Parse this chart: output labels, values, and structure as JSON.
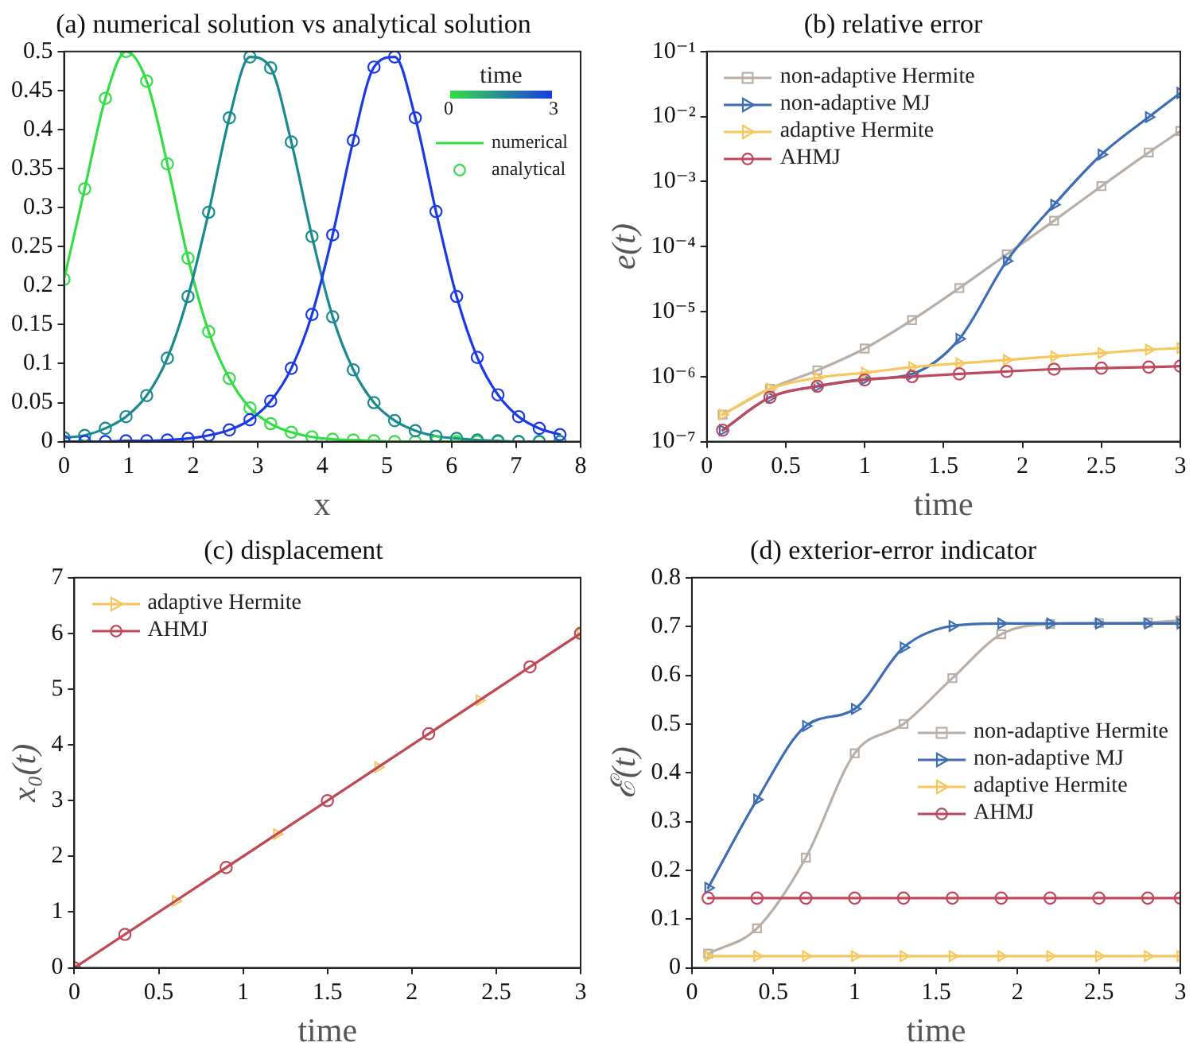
{
  "chart_data": [
    {
      "type": "line",
      "title": "(a) numerical solution vs analytical solution",
      "xlabel": "x",
      "xlim": [
        0,
        8
      ],
      "xticks": [
        0,
        1,
        2,
        3,
        4,
        5,
        6,
        7,
        8
      ],
      "ylim": [
        0,
        0.5
      ],
      "yticks": [
        0,
        0.05,
        0.1,
        0.15,
        0.2,
        0.25,
        0.3,
        0.35,
        0.4,
        0.45,
        0.5
      ],
      "legend": "top right",
      "clabel": "time",
      "annotations": [
        "0",
        "3"
      ],
      "x": [
        0,
        0.32,
        0.64,
        0.96,
        1.28,
        1.6,
        1.92,
        2.24,
        2.56,
        2.88,
        3.2,
        3.52,
        3.84,
        4.16,
        4.48,
        4.8,
        5.12,
        5.44,
        5.76,
        6.08,
        6.4,
        6.72,
        7.04,
        7.36,
        7.68
      ],
      "series": [
        {
          "name": "numerical",
          "marker": "none",
          "color": "#33dd44",
          "values": [
            0.208,
            0.324,
            0.44,
            0.5,
            0.462,
            0.356,
            0.235,
            0.141,
            0.081,
            0.043,
            0.023,
            0.012,
            0.006,
            0.003,
            0.002,
            0.001,
            0,
            0,
            0,
            0,
            0,
            0,
            0,
            0,
            0
          ]
        },
        {
          "marker": "none",
          "color": "#1a8a8f",
          "values": [
            0.005,
            0.008,
            0.017,
            0.032,
            0.059,
            0.107,
            0.186,
            0.294,
            0.415,
            0.493,
            0.479,
            0.384,
            0.263,
            0.16,
            0.092,
            0.05,
            0.027,
            0.014,
            0.007,
            0.004,
            0.002,
            0.001,
            0,
            0,
            0
          ]
        },
        {
          "marker": "none",
          "color": "#1a3ae6",
          "values": [
            0,
            0,
            0,
            0.001,
            0.001,
            0.002,
            0.004,
            0.008,
            0.015,
            0.028,
            0.052,
            0.094,
            0.163,
            0.265,
            0.386,
            0.48,
            0.493,
            0.415,
            0.295,
            0.186,
            0.108,
            0.06,
            0.032,
            0.017,
            0.009
          ]
        },
        {
          "type": "scatter",
          "name": "analytical",
          "marker": "circle",
          "color": "#33dd44",
          "values": [
            0.208,
            0.324,
            0.44,
            0.5,
            0.462,
            0.356,
            0.235,
            0.141,
            0.081,
            0.043,
            0.023,
            0.012,
            0.006,
            0.003,
            0.002,
            0.001,
            0,
            0,
            0,
            0,
            0,
            0,
            0,
            0,
            0
          ]
        },
        {
          "type": "scatter",
          "marker": "circle",
          "color": "#1a8a8f",
          "values": [
            0.005,
            0.008,
            0.017,
            0.032,
            0.059,
            0.107,
            0.186,
            0.294,
            0.415,
            0.493,
            0.479,
            0.384,
            0.263,
            0.16,
            0.092,
            0.05,
            0.027,
            0.014,
            0.007,
            0.004,
            0.002,
            0.001,
            0,
            0,
            0
          ]
        },
        {
          "type": "scatter",
          "marker": "circle",
          "color": "#1a3ae6",
          "values": [
            0,
            0,
            0,
            0.001,
            0.001,
            0.002,
            0.004,
            0.008,
            0.015,
            0.028,
            0.052,
            0.094,
            0.163,
            0.265,
            0.386,
            0.48,
            0.493,
            0.415,
            0.295,
            0.186,
            0.108,
            0.06,
            0.032,
            0.017,
            0.009
          ]
        }
      ]
    },
    {
      "type": "line",
      "title": "(b) relative error",
      "xlabel": "time",
      "ylabel": "e(t)",
      "log": "y",
      "xlim": [
        0,
        3
      ],
      "xticks": [
        0,
        0.5,
        1,
        1.5,
        2,
        2.5,
        3
      ],
      "ylim": [
        1e-07,
        0.1
      ],
      "yticks": [
        {
          "value": 1e-07,
          "label": "10⁻⁷"
        },
        {
          "value": 1e-06,
          "label": "10⁻⁶"
        },
        {
          "value": 1e-05,
          "label": "10⁻⁵"
        },
        {
          "value": 0.0001,
          "label": "10⁻⁴"
        },
        {
          "value": 0.001,
          "label": "10⁻³"
        },
        {
          "value": 0.01,
          "label": "10⁻²"
        },
        {
          "value": 0.1,
          "label": "10⁻¹"
        }
      ],
      "legend": "top left",
      "x": [
        0.1,
        0.4,
        0.7,
        1,
        1.3,
        1.6,
        1.9,
        2.2,
        2.5,
        2.8,
        3
      ],
      "series": [
        {
          "name": "non-adaptive Hermite",
          "marker": "square",
          "color": "#b8b0a8",
          "values": [
            2.6e-07,
            6.5e-07,
            1.25e-06,
            2.7e-06,
            7.4e-06,
            2.3e-05,
            7.6e-05,
            0.00025,
            0.00085,
            0.0028,
            0.006
          ]
        },
        {
          "name": "non-adaptive MJ",
          "marker": "triangle",
          "color": "#3d6db5",
          "values": [
            1.5e-07,
            4.8e-07,
            7.1e-07,
            9.1e-07,
            1.1e-06,
            3.8e-06,
            6e-05,
            0.00044,
            0.0026,
            0.0098,
            0.023
          ]
        },
        {
          "name": "adaptive Hermite",
          "marker": "triangle",
          "color": "#f7c65c",
          "values": [
            2.6e-07,
            6.5e-07,
            9.6e-07,
            1.15e-06,
            1.4e-06,
            1.6e-06,
            1.8e-06,
            2.05e-06,
            2.3e-06,
            2.6e-06,
            2.75e-06
          ]
        },
        {
          "name": "AHMJ",
          "marker": "circle",
          "color": "#c0485c",
          "values": [
            1.5e-07,
            4.8e-07,
            7.1e-07,
            8.9e-07,
            1e-06,
            1.1e-06,
            1.2e-06,
            1.3e-06,
            1.35e-06,
            1.4e-06,
            1.45e-06
          ]
        }
      ]
    },
    {
      "type": "line",
      "title": "(c) displacement",
      "xlabel": "time",
      "ylabel": "x₀(t)",
      "xlim": [
        0,
        3
      ],
      "xticks": [
        0,
        0.5,
        1,
        1.5,
        2,
        2.5,
        3
      ],
      "ylim": [
        0,
        7
      ],
      "yticks": [
        0,
        1,
        2,
        3,
        4,
        5,
        6,
        7
      ],
      "legend": "top left",
      "series": [
        {
          "name": "adaptive Hermite",
          "marker": "triangle",
          "color": "#f7c65c",
          "x": [
            0,
            0.6,
            1.2,
            1.8,
            2.4,
            3
          ],
          "values": [
            0,
            1.2,
            2.4,
            3.6,
            4.8,
            6
          ]
        },
        {
          "name": "AHMJ",
          "marker": "circle",
          "color": "#c0485c",
          "x": [
            0,
            0.3,
            0.9,
            1.5,
            2.1,
            2.7,
            3
          ],
          "values": [
            0,
            0.6,
            1.8,
            3,
            4.2,
            5.4,
            6
          ]
        }
      ]
    },
    {
      "type": "line",
      "title": "(d) exterior-error indicator",
      "xlabel": "time",
      "ylabel": "ℰ(t)",
      "xlim": [
        0,
        3
      ],
      "xticks": [
        0,
        0.5,
        1,
        1.5,
        2,
        2.5,
        3
      ],
      "ylim": [
        0,
        0.8
      ],
      "yticks": [
        0,
        0.1,
        0.2,
        0.3,
        0.4,
        0.5,
        0.6,
        0.7,
        0.8
      ],
      "legend": "right",
      "x": [
        0.1,
        0.4,
        0.7,
        1,
        1.3,
        1.6,
        1.9,
        2.2,
        2.5,
        2.8,
        3
      ],
      "series": [
        {
          "name": "non-adaptive Hermite",
          "marker": "square",
          "color": "#b8b0a8",
          "values": [
            0.029,
            0.081,
            0.226,
            0.44,
            0.5,
            0.594,
            0.684,
            0.705,
            0.707,
            0.708,
            0.712
          ]
        },
        {
          "name": "non-adaptive MJ",
          "marker": "triangle",
          "color": "#3d6db5",
          "values": [
            0.164,
            0.345,
            0.496,
            0.531,
            0.657,
            0.701,
            0.706,
            0.706,
            0.706,
            0.706,
            0.706
          ]
        },
        {
          "name": "adaptive Hermite",
          "marker": "triangle",
          "color": "#f7c65c",
          "values": [
            0.024,
            0.024,
            0.024,
            0.024,
            0.024,
            0.024,
            0.024,
            0.024,
            0.024,
            0.024,
            0.024
          ]
        },
        {
          "name": "AHMJ",
          "marker": "circle",
          "color": "#c0485c",
          "values": [
            0.143,
            0.143,
            0.143,
            0.143,
            0.143,
            0.143,
            0.143,
            0.143,
            0.143,
            0.143,
            0.143
          ]
        }
      ]
    }
  ]
}
